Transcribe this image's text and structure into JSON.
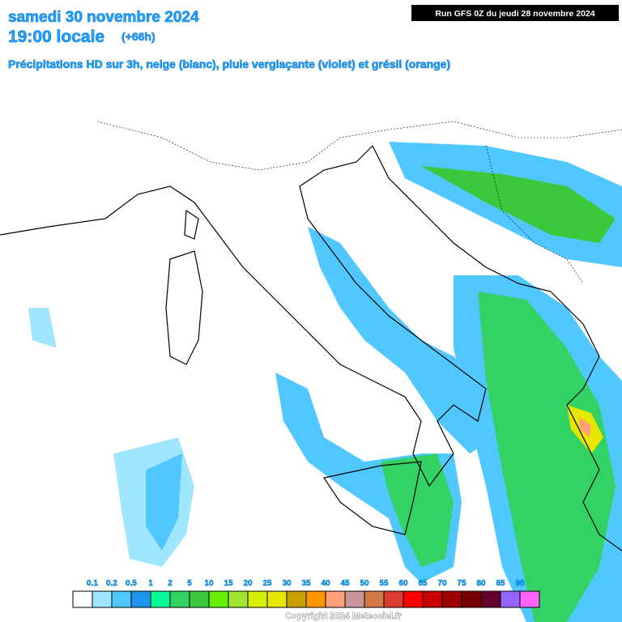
{
  "header": {
    "date": "samedi 30 novembre 2024",
    "time": "19:00 locale",
    "lead": "(+66h)",
    "subtitle": "Précipitations HD sur 3h, neige (blanc), pluie verglaçante (violet) et grésil (orange)",
    "run": "Run GFS 0Z du jeudi 28 novembre 2024"
  },
  "legend": {
    "labels": [
      0.1,
      0.2,
      0.5,
      1,
      2,
      5,
      10,
      15,
      20,
      25,
      30,
      35,
      40,
      45,
      50,
      55,
      60,
      65,
      70,
      75,
      80,
      85,
      90
    ],
    "colors": [
      "#ffffff",
      "#a0e6ff",
      "#50c8ff",
      "#1e96f0",
      "#00fa96",
      "#32d264",
      "#3cc83c",
      "#64f000",
      "#a0e632",
      "#d2f000",
      "#e6e600",
      "#c8a000",
      "#ff9600",
      "#ffa078",
      "#c89696",
      "#d27846",
      "#dc3c32",
      "#ff0000",
      "#c80000",
      "#a00000",
      "#780000",
      "#64002d",
      "#9664ff",
      "#ff64ff"
    ]
  },
  "footer": {
    "copyright": "Copyright 2024 Meteociel.fr"
  }
}
